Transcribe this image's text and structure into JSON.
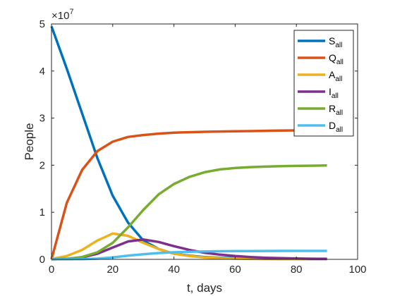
{
  "chart_data": {
    "type": "line",
    "xlabel": "t, days",
    "ylabel": "People",
    "y_exponent_label": "×10",
    "y_exponent_power": "7",
    "y_multiplier": 10000000,
    "xlim": [
      0,
      100
    ],
    "ylim": [
      0,
      50000000
    ],
    "x_ticks": [
      0,
      20,
      40,
      60,
      80,
      100
    ],
    "y_ticks": [
      0,
      10000000,
      20000000,
      30000000,
      40000000,
      50000000
    ],
    "x_tick_labels": [
      "0",
      "20",
      "40",
      "60",
      "80",
      "100"
    ],
    "y_tick_labels": [
      "0",
      "1",
      "2",
      "3",
      "4",
      "5"
    ],
    "grid": false,
    "legend_position": "top-right",
    "x": [
      0,
      5,
      10,
      15,
      20,
      25,
      30,
      35,
      40,
      45,
      50,
      55,
      60,
      65,
      70,
      75,
      80,
      85,
      90
    ],
    "series": [
      {
        "base": "S",
        "sub": "all",
        "color": "#0072BD",
        "values": [
          49500000,
          40500000,
          31000000,
          21500000,
          13500000,
          7800000,
          4000000,
          2200000,
          1200000,
          800000,
          500000,
          350000,
          250000,
          180000,
          130000,
          100000,
          80000,
          60000,
          50000
        ]
      },
      {
        "base": "Q",
        "sub": "all",
        "color": "#D95319",
        "values": [
          0,
          12000000,
          19000000,
          23000000,
          25000000,
          26000000,
          26400000,
          26700000,
          26900000,
          27000000,
          27100000,
          27150000,
          27200000,
          27250000,
          27300000,
          27350000,
          27400000,
          27450000,
          27500000
        ]
      },
      {
        "base": "A",
        "sub": "all",
        "color": "#EDB120",
        "values": [
          100000,
          700000,
          2000000,
          4000000,
          5500000,
          5000000,
          3500000,
          2200000,
          1200000,
          700000,
          400000,
          250000,
          150000,
          100000,
          60000,
          40000,
          30000,
          20000,
          10000
        ]
      },
      {
        "base": "I",
        "sub": "all",
        "color": "#7E2F8E",
        "values": [
          0,
          100000,
          400000,
          1200000,
          2500000,
          3800000,
          4200000,
          3700000,
          2800000,
          2000000,
          1400000,
          1000000,
          700000,
          500000,
          350000,
          250000,
          180000,
          130000,
          100000
        ]
      },
      {
        "base": "R",
        "sub": "all",
        "color": "#77AC30",
        "values": [
          0,
          100000,
          500000,
          1500000,
          3500000,
          6800000,
          10500000,
          13800000,
          16000000,
          17500000,
          18500000,
          19100000,
          19400000,
          19600000,
          19700000,
          19800000,
          19850000,
          19900000,
          19950000
        ]
      },
      {
        "base": "D",
        "sub": "all",
        "color": "#4DBEEE",
        "values": [
          0,
          10000,
          50000,
          150000,
          400000,
          800000,
          1100000,
          1350000,
          1500000,
          1600000,
          1680000,
          1720000,
          1750000,
          1770000,
          1780000,
          1790000,
          1800000,
          1800000,
          1800000
        ]
      }
    ]
  }
}
